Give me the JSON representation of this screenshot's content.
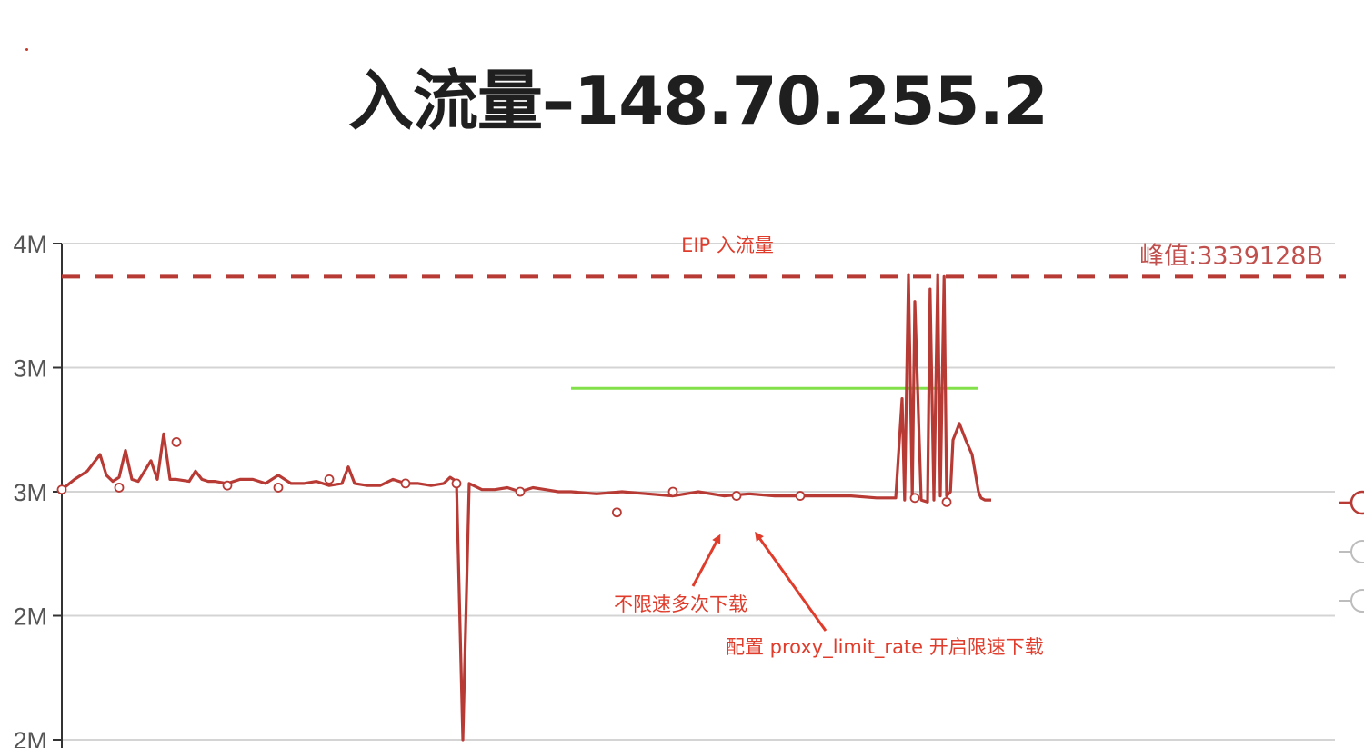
{
  "page": {
    "title": "入流量–148.70.255.2"
  },
  "chart_data": {
    "type": "line",
    "title": "入流量–148.70.255.2",
    "series_title": "EIP 入流量",
    "y_ticks": [
      "4M",
      "3M",
      "3M",
      "2M",
      "2M"
    ],
    "ylim": [
      1.6,
      4.0
    ],
    "grid": true,
    "colors": {
      "series": "#b83a35",
      "peak_line": "#b83a35",
      "limit_line": "#82e04a",
      "annotation": "#e03c2c",
      "axis": "#333333",
      "grid": "#d4d4d4"
    },
    "peak": {
      "label": "峰值:3339128B",
      "value": 3.84
    },
    "threshold_line": {
      "value": 3.3,
      "x_start": 0.4,
      "x_end": 0.72
    },
    "series": [
      {
        "x": [
          0.0,
          0.01,
          0.02,
          0.025,
          0.03,
          0.035,
          0.04,
          0.045,
          0.05,
          0.055,
          0.06,
          0.07,
          0.075,
          0.08,
          0.085,
          0.09,
          0.1,
          0.105,
          0.11,
          0.115,
          0.12,
          0.13,
          0.14,
          0.15,
          0.16,
          0.17,
          0.18,
          0.19,
          0.2,
          0.21,
          0.22,
          0.225,
          0.23,
          0.24,
          0.25,
          0.26,
          0.27,
          0.28,
          0.29,
          0.3,
          0.305,
          0.31,
          0.315,
          0.32,
          0.33,
          0.34,
          0.35,
          0.36,
          0.37,
          0.38,
          0.39,
          0.4,
          0.42,
          0.44,
          0.46,
          0.48,
          0.5,
          0.52,
          0.54,
          0.56,
          0.58,
          0.6,
          0.62,
          0.64,
          0.655,
          0.66,
          0.662,
          0.665,
          0.668,
          0.67,
          0.675,
          0.68,
          0.682,
          0.685,
          0.688,
          0.69,
          0.693,
          0.695,
          0.698,
          0.7,
          0.705,
          0.71,
          0.715,
          0.72,
          0.722,
          0.725,
          0.73
        ],
        "values": [
          2.81,
          2.86,
          2.9,
          2.94,
          2.98,
          2.88,
          2.85,
          2.87,
          3.0,
          2.86,
          2.85,
          2.95,
          2.86,
          3.08,
          2.86,
          2.86,
          2.85,
          2.9,
          2.86,
          2.85,
          2.85,
          2.84,
          2.86,
          2.86,
          2.84,
          2.88,
          2.84,
          2.84,
          2.85,
          2.83,
          2.84,
          2.92,
          2.84,
          2.83,
          2.83,
          2.86,
          2.84,
          2.84,
          2.83,
          2.84,
          2.87,
          2.85,
          1.6,
          2.84,
          2.81,
          2.81,
          2.82,
          2.8,
          2.82,
          2.81,
          2.8,
          2.8,
          2.79,
          2.8,
          2.79,
          2.78,
          2.8,
          2.78,
          2.79,
          2.78,
          2.78,
          2.78,
          2.78,
          2.77,
          2.77,
          3.25,
          2.76,
          3.85,
          2.78,
          3.72,
          2.76,
          2.75,
          3.78,
          2.76,
          3.85,
          2.78,
          3.84,
          2.78,
          2.8,
          3.05,
          3.13,
          3.05,
          2.98,
          2.8,
          2.77,
          2.76,
          2.76
        ],
        "point_markers": [
          {
            "x": 0.0,
            "value": 2.81
          },
          {
            "x": 0.045,
            "value": 2.82
          },
          {
            "x": 0.09,
            "value": 3.04
          },
          {
            "x": 0.13,
            "value": 2.83
          },
          {
            "x": 0.17,
            "value": 2.82
          },
          {
            "x": 0.21,
            "value": 2.86
          },
          {
            "x": 0.27,
            "value": 2.84
          },
          {
            "x": 0.31,
            "value": 2.84
          },
          {
            "x": 0.36,
            "value": 2.8
          },
          {
            "x": 0.436,
            "value": 2.7
          },
          {
            "x": 0.48,
            "value": 2.8
          },
          {
            "x": 0.53,
            "value": 2.78
          },
          {
            "x": 0.58,
            "value": 2.78
          },
          {
            "x": 0.67,
            "value": 2.77
          },
          {
            "x": 0.695,
            "value": 2.75
          }
        ]
      }
    ],
    "annotations": [
      {
        "text": "不限速多次下载"
      },
      {
        "text": "配置 proxy_limit_rate 开启限速下载"
      }
    ]
  }
}
